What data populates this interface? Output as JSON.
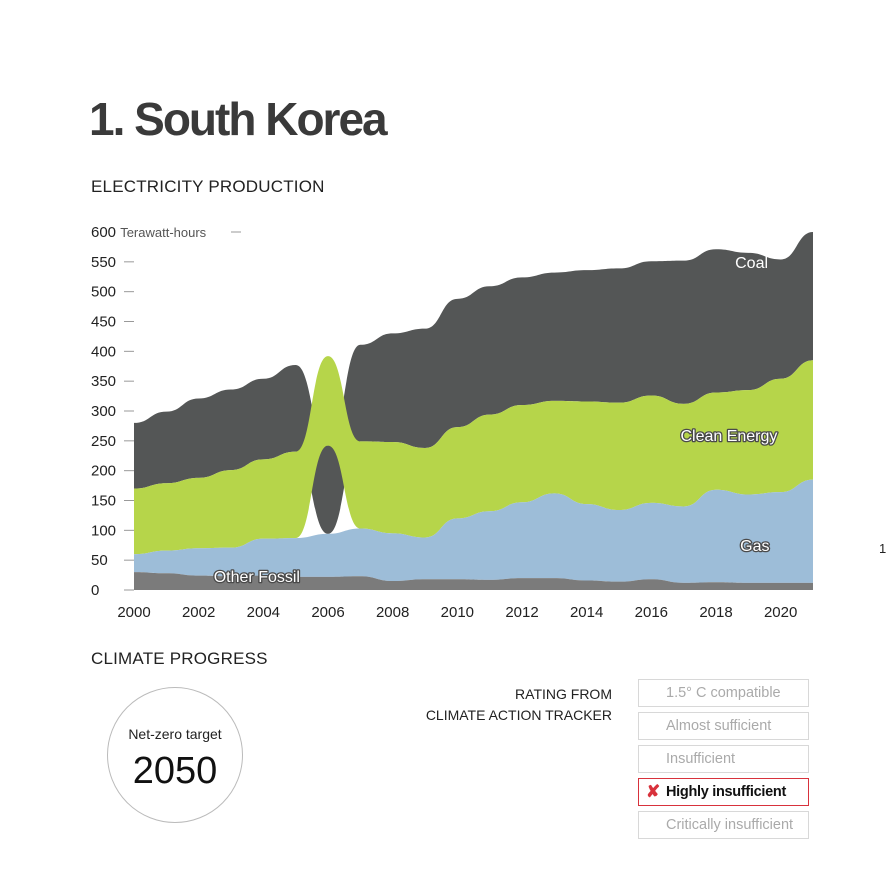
{
  "page": {
    "title": "1. South Korea",
    "section_production": "ELECTRICITY PRODUCTION",
    "section_progress": "CLIMATE PROGRESS",
    "edge_text": "1"
  },
  "progress": {
    "label": "Net-zero target",
    "year": "2050"
  },
  "rating": {
    "heading_line1": "RATING FROM",
    "heading_line2": "CLIMATE ACTION TRACKER",
    "options": [
      {
        "label": "1.5° C compatible",
        "active": false
      },
      {
        "label": "Almost sufficient",
        "active": false
      },
      {
        "label": "Insufficient",
        "active": false
      },
      {
        "label": "Highly insufficient",
        "active": true
      },
      {
        "label": "Critically insufficient",
        "active": false
      }
    ],
    "active_color": "#d8323c"
  },
  "chart_data": {
    "type": "area",
    "stacking": "ranked (largest source drawn on top each year)",
    "ylabel": "Terawatt-hours",
    "y_unit_label": "600 Terawatt-hours",
    "ylim": [
      0,
      600
    ],
    "yticks": [
      0,
      50,
      100,
      150,
      200,
      250,
      300,
      350,
      400,
      450,
      500,
      550,
      600
    ],
    "xlim": [
      2000,
      2021
    ],
    "xticks": [
      "2000",
      "2002",
      "2004",
      "2006",
      "2008",
      "2010",
      "2012",
      "2014",
      "2016",
      "2018",
      "2020"
    ],
    "x": [
      2000,
      2001,
      2002,
      2003,
      2004,
      2005,
      2006,
      2007,
      2008,
      2009,
      2010,
      2011,
      2012,
      2013,
      2014,
      2015,
      2016,
      2017,
      2018,
      2019,
      2020,
      2021
    ],
    "series": [
      {
        "name": "Other Fossil",
        "color": "#7b7b7b",
        "values": [
          30,
          28,
          24,
          23,
          24,
          22,
          22,
          23,
          15,
          18,
          18,
          17,
          20,
          20,
          16,
          14,
          18,
          12,
          13,
          12,
          12,
          12
        ]
      },
      {
        "name": "Gas",
        "color": "#9dbdd8",
        "values": [
          30,
          38,
          46,
          48,
          62,
          65,
          72,
          80,
          80,
          70,
          102,
          115,
          127,
          142,
          128,
          120,
          128,
          128,
          155,
          148,
          152,
          173
        ]
      },
      {
        "name": "Clean Energy",
        "color": "#b6d54a",
        "values": [
          110,
          113,
          118,
          130,
          133,
          145,
          150,
          146,
          153,
          150,
          153,
          162,
          163,
          155,
          172,
          180,
          180,
          172,
          163,
          175,
          190,
          200
        ]
      },
      {
        "name": "Coal",
        "color": "#545656",
        "values": [
          110,
          120,
          133,
          135,
          135,
          145,
          148,
          162,
          182,
          200,
          215,
          215,
          214,
          215,
          220,
          225,
          225,
          240,
          240,
          230,
          200,
          215
        ]
      }
    ],
    "annotations": [
      "Coal",
      "Clean Energy",
      "Gas",
      "Other Fossil"
    ],
    "grid": false,
    "legend": "inline labels"
  }
}
